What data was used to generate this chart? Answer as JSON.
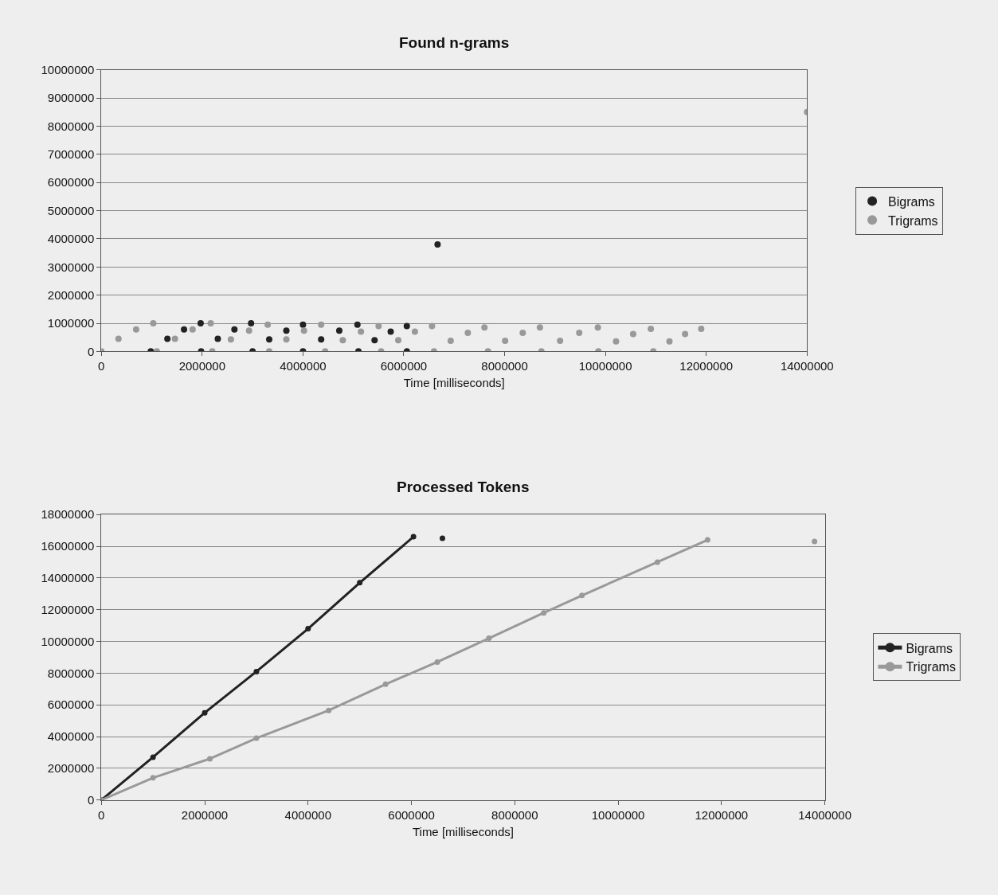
{
  "chart_data": [
    {
      "type": "scatter",
      "title": "Found n-grams",
      "xlabel": "Time [milliseconds]",
      "xlim": [
        0,
        14000000
      ],
      "xticks": [
        0,
        2000000,
        4000000,
        6000000,
        8000000,
        10000000,
        12000000,
        14000000
      ],
      "ylim": [
        0,
        10000000
      ],
      "yticks": [
        0,
        1000000,
        2000000,
        3000000,
        4000000,
        5000000,
        6000000,
        7000000,
        8000000,
        9000000,
        10000000
      ],
      "grid": "y",
      "legend": "right",
      "marker": "circle",
      "series": [
        {
          "name": "Bigrams",
          "color": "#222222",
          "x": [
            980000,
            1310000,
            1640000,
            1970000,
            1980000,
            2310000,
            2640000,
            2970000,
            3000000,
            3330000,
            3670000,
            4000000,
            4000000,
            4360000,
            4720000,
            5080000,
            5100000,
            5420000,
            5740000,
            6060000,
            6060000,
            6670000
          ],
          "values": [
            0,
            450000,
            780000,
            1000000,
            0,
            450000,
            780000,
            1000000,
            0,
            430000,
            740000,
            950000,
            0,
            430000,
            740000,
            950000,
            0,
            400000,
            700000,
            900000,
            0,
            3800000
          ]
        },
        {
          "name": "Trigrams",
          "color": "#999999",
          "x": [
            0,
            340000,
            690000,
            1030000,
            1100000,
            1460000,
            1810000,
            2170000,
            2200000,
            2570000,
            2930000,
            3300000,
            3330000,
            3670000,
            4020000,
            4360000,
            4440000,
            4790000,
            5150000,
            5500000,
            5550000,
            5890000,
            6220000,
            6560000,
            6600000,
            6930000,
            7270000,
            7600000,
            7670000,
            8010000,
            8360000,
            8700000,
            8730000,
            9100000,
            9480000,
            9850000,
            9860000,
            10210000,
            10550000,
            10900000,
            10950000,
            11270000,
            11580000,
            11900000,
            14000000
          ],
          "values": [
            0,
            450000,
            780000,
            1000000,
            0,
            450000,
            780000,
            1000000,
            0,
            430000,
            740000,
            950000,
            0,
            430000,
            740000,
            950000,
            0,
            400000,
            700000,
            900000,
            0,
            400000,
            700000,
            900000,
            0,
            380000,
            660000,
            850000,
            0,
            380000,
            660000,
            850000,
            0,
            380000,
            660000,
            850000,
            0,
            360000,
            620000,
            800000,
            0,
            360000,
            620000,
            800000,
            8500000
          ]
        }
      ]
    },
    {
      "type": "line",
      "title": "Processed Tokens",
      "xlabel": "Time [milliseconds]",
      "xlim": [
        0,
        14000000
      ],
      "xticks": [
        0,
        2000000,
        4000000,
        6000000,
        8000000,
        10000000,
        12000000,
        14000000
      ],
      "ylim": [
        0,
        18000000
      ],
      "yticks": [
        0,
        2000000,
        4000000,
        6000000,
        8000000,
        10000000,
        12000000,
        14000000,
        16000000,
        18000000
      ],
      "grid": "y",
      "legend": "right",
      "marker": "circle",
      "line_style": "solid",
      "series": [
        {
          "name": "Bigrams",
          "color": "#222222",
          "x": [
            0,
            1000000,
            2000000,
            3000000,
            4000000,
            5000000,
            6040000,
            6300000,
            6600000
          ],
          "values": [
            0,
            2700000,
            5500000,
            8100000,
            10800000,
            13700000,
            16600000,
            null,
            16500000
          ]
        },
        {
          "name": "Trigrams",
          "color": "#999999",
          "x": [
            0,
            1000000,
            2100000,
            3000000,
            4400000,
            5500000,
            6500000,
            7500000,
            8560000,
            9300000,
            10760000,
            11730000,
            12700000,
            13800000
          ],
          "values": [
            0,
            1400000,
            2600000,
            3900000,
            5650000,
            7300000,
            8700000,
            10200000,
            11800000,
            12900000,
            15000000,
            16400000,
            null,
            16300000
          ]
        }
      ]
    }
  ]
}
